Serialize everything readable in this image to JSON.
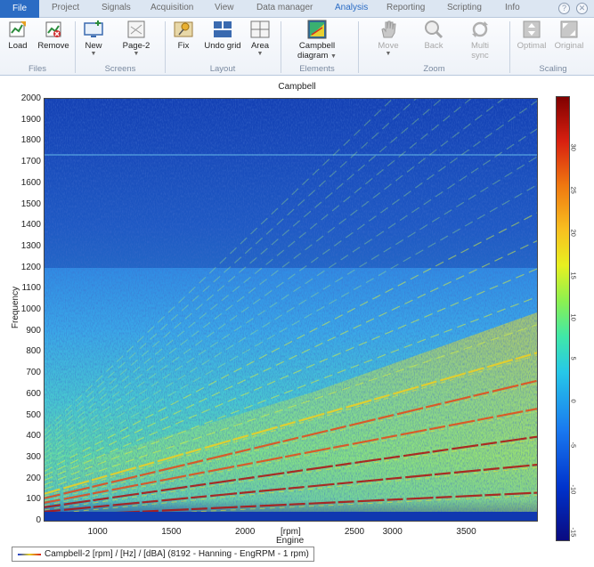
{
  "tabs": [
    "File",
    "Project",
    "Signals",
    "Acquisition",
    "View",
    "Data manager",
    "Analysis",
    "Reporting",
    "Scripting",
    "Info"
  ],
  "active_tab": "Analysis",
  "window_icons": {
    "help": "?",
    "close": "✕"
  },
  "ribbon": {
    "groups": [
      {
        "label": "Files",
        "buttons": [
          {
            "label": "Load",
            "icon": "load-icon"
          },
          {
            "label": "Remove",
            "icon": "remove-icon"
          }
        ]
      },
      {
        "label": "Screens",
        "buttons": [
          {
            "label": "New",
            "icon": "new-screen-icon"
          },
          {
            "label": "Page-2",
            "icon": "page-icon"
          }
        ]
      },
      {
        "label": "Layout",
        "buttons": [
          {
            "label": "Fix",
            "icon": "pin-icon"
          },
          {
            "label": "Undo grid",
            "icon": "grid-icon"
          },
          {
            "label": "Area",
            "icon": "area-icon"
          }
        ]
      },
      {
        "label": "Elements",
        "buttons": [
          {
            "label": "Campbell",
            "label2": "diagram",
            "icon": "campbell-icon"
          }
        ]
      },
      {
        "label": "Zoom",
        "buttons": [
          {
            "label": "Move",
            "icon": "hand-icon"
          },
          {
            "label": "Back",
            "icon": "zoom-back-icon"
          },
          {
            "label": "Multi",
            "label2": "sync",
            "icon": "multi-sync-icon"
          }
        ]
      },
      {
        "label": "Scaling",
        "buttons": [
          {
            "label": "Optimal",
            "icon": "optimal-icon"
          },
          {
            "label": "Original",
            "icon": "original-icon"
          }
        ]
      }
    ]
  },
  "colors": {
    "accent": "#2b6cc4",
    "ribbon_bg": "#eef2f8",
    "tabs_bg": "#dce6f2"
  },
  "chart_data": {
    "type": "heatmap",
    "title": "Campbell",
    "xlabel": "Engine",
    "xunit": "[rpm]",
    "ylabel": "Frequency",
    "xlim": [
      640,
      3980
    ],
    "ylim": [
      0,
      2000
    ],
    "x_ticks": [
      1000,
      1500,
      2000,
      2500,
      3000,
      3500
    ],
    "y_ticks": [
      0,
      100,
      200,
      300,
      400,
      500,
      600,
      700,
      800,
      900,
      1000,
      1100,
      1200,
      1300,
      1400,
      1500,
      1600,
      1700,
      1800,
      1900,
      2000
    ],
    "colorbar": {
      "min": -17,
      "max": 35,
      "ticks": [
        -15,
        -10,
        -5,
        0,
        5,
        10,
        15,
        20,
        25,
        30
      ]
    },
    "legend": "Campbell-2 [rpm] / [Hz] / [dBA] (8192 - Hanning - EngRPM - 1 rpm)",
    "orders": [
      {
        "order": 2
      },
      {
        "order": 4
      },
      {
        "order": 6
      },
      {
        "order": 8
      },
      {
        "order": 10
      },
      {
        "order": 12
      }
    ]
  }
}
